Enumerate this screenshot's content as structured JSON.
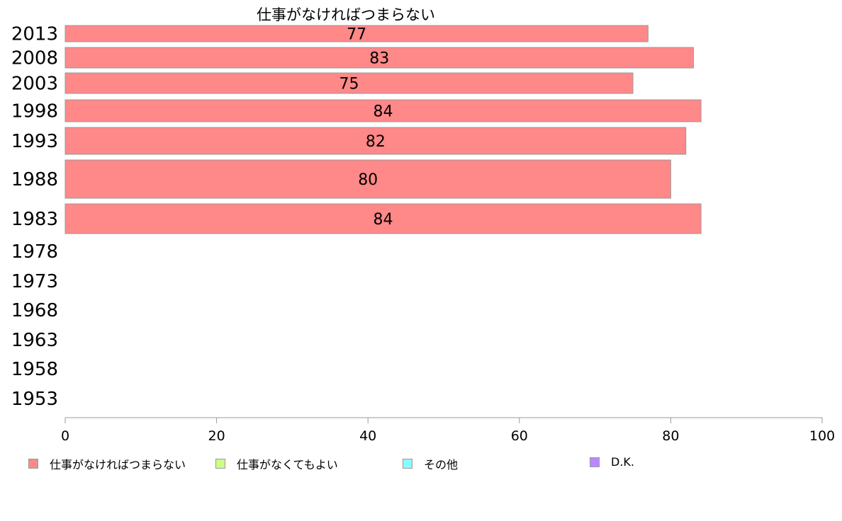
{
  "chart_data": {
    "type": "bar",
    "orientation": "horizontal",
    "stacked": true,
    "title": "仕事がなければつまらない",
    "categories": [
      "2013",
      "2008",
      "2003",
      "1998",
      "1993",
      "1988",
      "1983",
      "1978",
      "1973",
      "1968",
      "1963",
      "1958",
      "1953"
    ],
    "series": [
      {
        "name": "仕事がなければつまらない",
        "color": "#ff8888",
        "values": [
          77,
          83,
          75,
          84,
          82,
          80,
          84,
          null,
          null,
          null,
          null,
          null,
          null
        ]
      },
      {
        "name": "仕事がなくてもよい",
        "color": "#ccff88",
        "values": [
          null,
          null,
          null,
          null,
          null,
          null,
          null,
          null,
          null,
          null,
          null,
          null,
          null
        ]
      },
      {
        "name": "その他",
        "color": "#88ffff",
        "values": [
          null,
          null,
          null,
          null,
          null,
          null,
          null,
          null,
          null,
          null,
          null,
          null,
          null
        ]
      },
      {
        "name": "D.K.",
        "color": "#bb88ff",
        "values": [
          null,
          null,
          null,
          null,
          null,
          null,
          null,
          null,
          null,
          null,
          null,
          null,
          null
        ]
      }
    ],
    "xlim": [
      0,
      100
    ],
    "xticks": [
      0,
      20,
      40,
      60,
      80,
      100
    ],
    "xlabel": "",
    "ylabel": "",
    "grid": false,
    "legend_position": "bottom"
  }
}
